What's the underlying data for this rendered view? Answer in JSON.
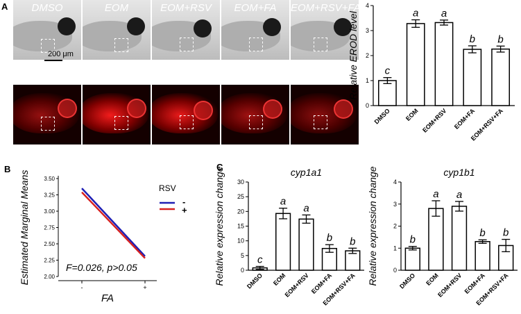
{
  "panel_letters": {
    "a": "A",
    "b": "B",
    "c": "C"
  },
  "panel_a": {
    "conditions": [
      "DMSO",
      "EOM",
      "EOM+RSV",
      "EOM+FA",
      "EOM+RSV+FA"
    ],
    "scale_bar_label": "200 μm"
  },
  "panel_b": {
    "legend_title": "RSV",
    "legend_minus": "-",
    "legend_plus": "+",
    "stat_text": "F=0.026, p>0.05"
  },
  "chart_data": [
    {
      "type": "bar",
      "categories": [
        "DMSO",
        "EOM",
        "EOM+RSV",
        "EOM+FA",
        "EOM+RSV+FA"
      ],
      "values": [
        1.0,
        3.28,
        3.32,
        2.25,
        2.26
      ],
      "errors": [
        0.12,
        0.15,
        0.1,
        0.14,
        0.12
      ],
      "letters": [
        "c",
        "a",
        "a",
        "b",
        "b"
      ],
      "ylabel": "Relative EROD level",
      "ylim": [
        0,
        4
      ],
      "yticks": [
        0,
        1,
        2,
        3,
        4
      ]
    },
    {
      "type": "line",
      "xlabel": "FA",
      "ylabel": "Estimated Marginal Means",
      "x": [
        "-",
        "+"
      ],
      "ylim": [
        2.0,
        3.5
      ],
      "yticks": [
        "2.00",
        "2.25",
        "2.50",
        "2.75",
        "3.00",
        "3.25",
        "3.50"
      ],
      "series": [
        {
          "name": "-",
          "color": "#1f1fb4",
          "values": [
            3.35,
            2.31
          ]
        },
        {
          "name": "+",
          "color": "#d62020",
          "values": [
            3.29,
            2.28
          ]
        }
      ]
    },
    {
      "type": "bar",
      "title": "cyp1a1",
      "categories": [
        "DMSO",
        "EOM",
        "EOM+RSV",
        "EOM+FA",
        "EOM+RSV+FA"
      ],
      "values": [
        0.8,
        19.3,
        17.4,
        7.4,
        6.6
      ],
      "errors": [
        0.5,
        1.8,
        1.4,
        1.3,
        0.9
      ],
      "letters": [
        "c",
        "a",
        "a",
        "b",
        "b"
      ],
      "ylabel": "Relative expression change",
      "ylim": [
        0,
        30
      ],
      "yticks": [
        0,
        5,
        10,
        15,
        20,
        25,
        30
      ]
    },
    {
      "type": "bar",
      "title": "cyp1b1",
      "categories": [
        "DMSO",
        "EOM",
        "EOM+RSV",
        "EOM+FA",
        "EOM+RSV+FA"
      ],
      "values": [
        1.0,
        2.8,
        2.9,
        1.3,
        1.12
      ],
      "errors": [
        0.08,
        0.35,
        0.22,
        0.08,
        0.28
      ],
      "letters": [
        "b",
        "a",
        "a",
        "b",
        "b"
      ],
      "ylabel": "Relative expression change",
      "ylim": [
        0,
        4
      ],
      "yticks": [
        0,
        1,
        2,
        3,
        4
      ]
    }
  ]
}
